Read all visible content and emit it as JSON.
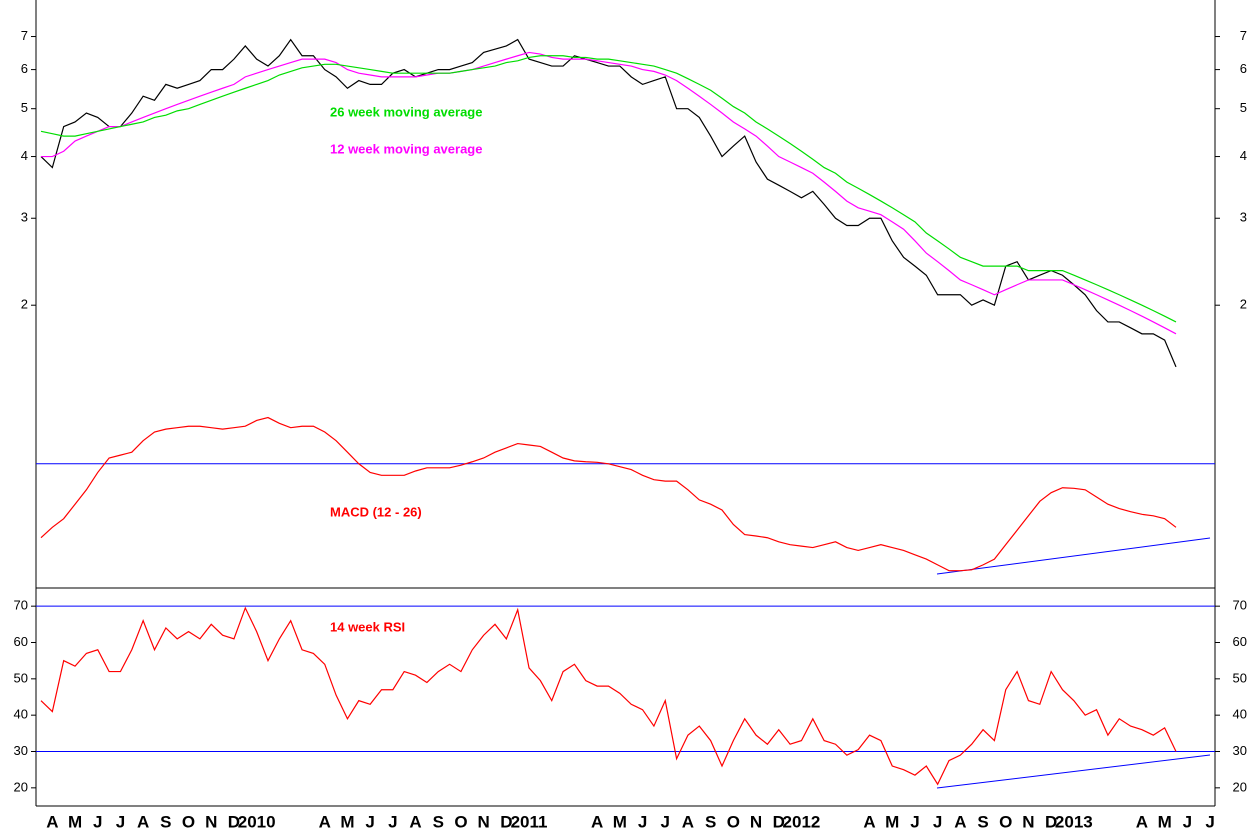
{
  "chart_data": [
    {
      "type": "line",
      "log_scale": true,
      "ylim": [
        1.25,
        8.3
      ],
      "yticks": [
        2,
        3,
        4,
        5,
        6,
        7
      ],
      "series": [
        {
          "color": "#000000",
          "values": [
            4.0,
            3.8,
            4.6,
            4.7,
            4.9,
            4.8,
            4.6,
            4.6,
            4.9,
            5.3,
            5.2,
            5.6,
            5.5,
            5.6,
            5.7,
            6.0,
            6.0,
            6.3,
            6.7,
            6.3,
            6.1,
            6.4,
            6.9,
            6.4,
            6.4,
            6.0,
            5.8,
            5.5,
            5.7,
            5.6,
            5.6,
            5.9,
            6.0,
            5.8,
            5.9,
            6.0,
            6.0,
            6.1,
            6.2,
            6.5,
            6.6,
            6.7,
            6.9,
            6.3,
            6.2,
            6.1,
            6.1,
            6.4,
            6.3,
            6.2,
            6.1,
            6.1,
            5.8,
            5.6,
            5.7,
            5.8,
            5.0,
            5.0,
            4.8,
            4.4,
            4.0,
            4.2,
            4.4,
            3.9,
            3.6,
            3.5,
            3.4,
            3.3,
            3.4,
            3.2,
            3.0,
            2.9,
            2.9,
            3.0,
            3.0,
            2.7,
            2.5,
            2.4,
            2.3,
            2.1,
            2.1,
            2.1,
            2.0,
            2.05,
            2.0,
            2.4,
            2.45,
            2.25,
            2.3,
            2.35,
            2.3,
            2.2,
            2.1,
            1.95,
            1.85,
            1.85,
            1.8,
            1.75,
            1.75,
            1.7,
            1.5,
            null,
            null,
            null
          ]
        },
        {
          "name": "12 week moving average",
          "color": "#ff00ff",
          "values": [
            4.0,
            4.0,
            4.1,
            4.3,
            4.4,
            4.5,
            4.6,
            4.6,
            4.7,
            4.8,
            4.9,
            5.0,
            5.1,
            5.2,
            5.3,
            5.4,
            5.5,
            5.6,
            5.8,
            5.9,
            6.0,
            6.1,
            6.2,
            6.3,
            6.3,
            6.3,
            6.2,
            6.0,
            5.9,
            5.85,
            5.8,
            5.8,
            5.8,
            5.8,
            5.85,
            5.9,
            5.9,
            5.95,
            6.0,
            6.1,
            6.2,
            6.3,
            6.4,
            6.5,
            6.45,
            6.35,
            6.3,
            6.3,
            6.3,
            6.25,
            6.2,
            6.15,
            6.1,
            6.0,
            5.95,
            5.85,
            5.7,
            5.5,
            5.3,
            5.1,
            4.9,
            4.7,
            4.55,
            4.4,
            4.2,
            4.0,
            3.9,
            3.8,
            3.7,
            3.55,
            3.4,
            3.25,
            3.15,
            3.1,
            3.05,
            2.95,
            2.85,
            2.7,
            2.55,
            2.45,
            2.35,
            2.25,
            2.2,
            2.15,
            2.1,
            2.15,
            2.2,
            2.25,
            2.25,
            2.25,
            2.25,
            2.2,
            2.15,
            2.1,
            2.05,
            2.0,
            1.95,
            1.9,
            1.85,
            1.8,
            1.75,
            null,
            null,
            null
          ]
        },
        {
          "name": "26 week moving average",
          "color": "#00dd00",
          "values": [
            4.5,
            4.45,
            4.4,
            4.4,
            4.45,
            4.5,
            4.55,
            4.6,
            4.65,
            4.7,
            4.8,
            4.85,
            4.95,
            5.0,
            5.1,
            5.2,
            5.3,
            5.4,
            5.5,
            5.6,
            5.7,
            5.85,
            5.95,
            6.05,
            6.1,
            6.15,
            6.15,
            6.1,
            6.05,
            6.0,
            5.95,
            5.9,
            5.9,
            5.9,
            5.9,
            5.9,
            5.9,
            5.95,
            6.0,
            6.05,
            6.1,
            6.2,
            6.25,
            6.35,
            6.4,
            6.4,
            6.4,
            6.35,
            6.35,
            6.3,
            6.3,
            6.25,
            6.2,
            6.15,
            6.1,
            6.0,
            5.9,
            5.75,
            5.6,
            5.45,
            5.25,
            5.05,
            4.9,
            4.7,
            4.55,
            4.4,
            4.25,
            4.1,
            3.95,
            3.8,
            3.7,
            3.55,
            3.45,
            3.35,
            3.25,
            3.15,
            3.05,
            2.95,
            2.8,
            2.7,
            2.6,
            2.5,
            2.45,
            2.4,
            2.4,
            2.4,
            2.4,
            2.35,
            2.35,
            2.35,
            2.35,
            2.3,
            2.25,
            2.2,
            2.15,
            2.1,
            2.05,
            2.0,
            1.95,
            1.9,
            1.85,
            null,
            null,
            null
          ]
        }
      ]
    },
    {
      "type": "line",
      "ylim": [
        -0.43,
        0.2
      ],
      "ref_lines": [
        0
      ],
      "ref_line_color": "#0000ff",
      "series": [
        {
          "name": "MACD (12 - 26)",
          "color": "#ff0000",
          "values": [
            -0.256,
            -0.22,
            -0.19,
            -0.14,
            -0.09,
            -0.03,
            0.02,
            0.03,
            0.04,
            0.08,
            0.11,
            0.12,
            0.125,
            0.13,
            0.13,
            0.125,
            0.12,
            0.125,
            0.13,
            0.15,
            0.16,
            0.14,
            0.125,
            0.13,
            0.13,
            0.11,
            0.08,
            0.04,
            0,
            -0.03,
            -0.04,
            -0.04,
            -0.04,
            -0.025,
            -0.014,
            -0.014,
            -0.014,
            -0.005,
            0.007,
            0.02,
            0.04,
            0.055,
            0.07,
            0.065,
            0.06,
            0.04,
            0.02,
            0.01,
            0.007,
            0.005,
            0,
            -0.01,
            -0.02,
            -0.04,
            -0.055,
            -0.06,
            -0.06,
            -0.09,
            -0.125,
            -0.14,
            -0.16,
            -0.21,
            -0.245,
            -0.25,
            -0.256,
            -0.27,
            -0.28,
            -0.285,
            -0.29,
            -0.28,
            -0.27,
            -0.29,
            -0.3,
            -0.29,
            -0.28,
            -0.29,
            -0.3,
            -0.315,
            -0.33,
            -0.35,
            -0.37,
            -0.37,
            -0.367,
            -0.35,
            -0.33,
            -0.28,
            -0.23,
            -0.18,
            -0.13,
            -0.1,
            -0.083,
            -0.085,
            -0.09,
            -0.115,
            -0.14,
            -0.155,
            -0.166,
            -0.175,
            -0.18,
            -0.19,
            -0.22,
            null,
            null,
            null
          ]
        }
      ]
    },
    {
      "type": "line",
      "ylim": [
        15,
        75
      ],
      "yticks": [
        20,
        30,
        40,
        50,
        60,
        70
      ],
      "ref_lines": [
        70,
        30
      ],
      "ref_line_color": "#0000ff",
      "categories": [
        null,
        "A",
        null,
        "M",
        null,
        "J",
        null,
        "J",
        null,
        "A",
        null,
        "S",
        null,
        "O",
        null,
        "N",
        null,
        "D",
        null,
        "2010",
        null,
        null,
        null,
        null,
        null,
        "A",
        null,
        "M",
        null,
        "J",
        null,
        "J",
        null,
        "A",
        null,
        "S",
        null,
        "O",
        null,
        "N",
        null,
        "D",
        null,
        "2011",
        null,
        null,
        null,
        null,
        null,
        "A",
        null,
        "M",
        null,
        "J",
        null,
        "J",
        null,
        "A",
        null,
        "S",
        null,
        "O",
        null,
        "N",
        null,
        "D",
        null,
        "2012",
        null,
        null,
        null,
        null,
        null,
        "A",
        null,
        "M",
        null,
        "J",
        null,
        "J",
        null,
        "A",
        null,
        "S",
        null,
        "O",
        null,
        "N",
        null,
        "D",
        null,
        "2013",
        null,
        null,
        null,
        null,
        null,
        "A",
        null,
        "M",
        null,
        "J",
        null,
        "J"
      ],
      "series": [
        {
          "name": "14 week RSI",
          "color": "#ff0000",
          "values": [
            44,
            41,
            55,
            53.5,
            57,
            58,
            52,
            52,
            58,
            66,
            58,
            64,
            61,
            63,
            61,
            65,
            62,
            61,
            69.5,
            63,
            55,
            61,
            66,
            58,
            57,
            54,
            45.5,
            39,
            44,
            43,
            47,
            47,
            52,
            51,
            49,
            52,
            54,
            52,
            58,
            62,
            65,
            61,
            69,
            53,
            49.5,
            44,
            52,
            54,
            49.5,
            48,
            48,
            46,
            43,
            41.5,
            37,
            44,
            28,
            34.5,
            37,
            33,
            26,
            33,
            39,
            34.5,
            32,
            36,
            32,
            33,
            39,
            33,
            32,
            29,
            30.5,
            34.5,
            33,
            26,
            25,
            23.5,
            26,
            21,
            27.5,
            29,
            32,
            36,
            33,
            47,
            52,
            44,
            43,
            52,
            47,
            44,
            40,
            41.5,
            34.5,
            39,
            37,
            36,
            34.5,
            36.5,
            30,
            null,
            null,
            null
          ]
        }
      ]
    }
  ]
}
